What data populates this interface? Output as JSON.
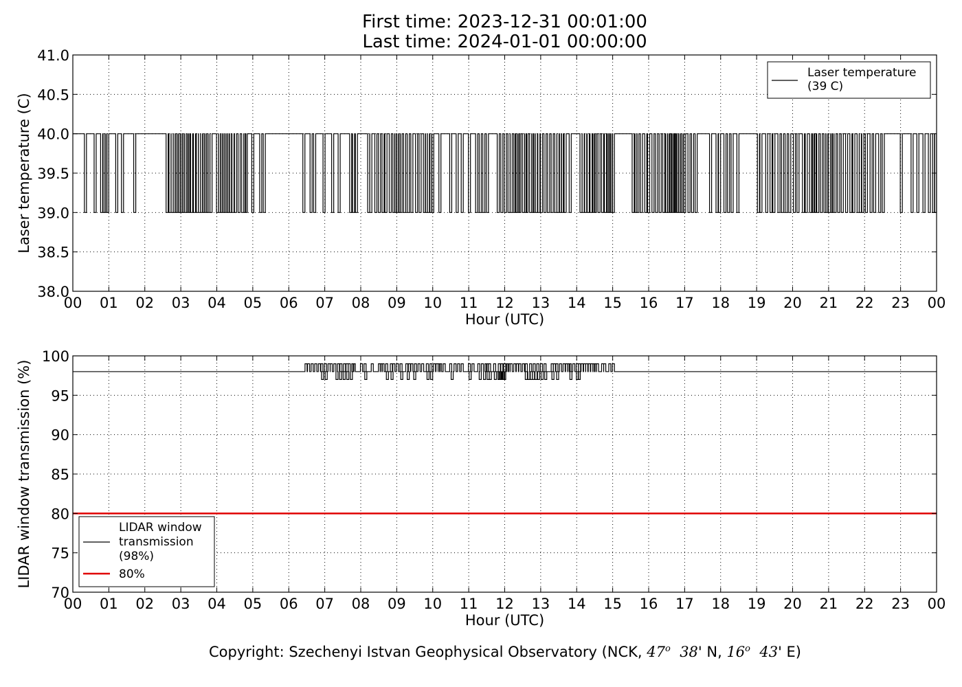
{
  "title": {
    "line1": "First time: 2023-12-31 00:01:00",
    "line2": "Last time: 2024-01-01 00:00:00"
  },
  "footer": {
    "prefix": "Copyright: Szechenyi Istvan Geophysical Observatory (NCK, ",
    "lat_deg": "47",
    "lat_min": "38",
    "lat_suffix": "' N, ",
    "lon_deg": "16",
    "lon_min": "43",
    "lon_suffix": "' E)",
    "degree_mark": "o"
  },
  "colors": {
    "series_line": "#000000",
    "threshold_line": "#e00000",
    "grid": "#000000"
  },
  "chart_data": [
    {
      "type": "line",
      "title": "",
      "xlabel": "Hour (UTC)",
      "ylabel": "Laser temperature (C)",
      "xlim": [
        0,
        24
      ],
      "ylim": [
        38.0,
        41.0
      ],
      "xticks": [
        "00",
        "01",
        "02",
        "03",
        "04",
        "05",
        "06",
        "07",
        "08",
        "09",
        "10",
        "11",
        "12",
        "13",
        "14",
        "15",
        "16",
        "17",
        "18",
        "19",
        "20",
        "21",
        "22",
        "23",
        "00"
      ],
      "yticks": [
        "38.0",
        "38.5",
        "39.0",
        "39.5",
        "40.0",
        "40.5",
        "41.0"
      ],
      "grid": true,
      "legend_position": "top-right",
      "series": [
        {
          "name": "Laser temperature\n(39 C)",
          "baseline": 40.0,
          "drop_value": 39.0,
          "drops_hours": [
            0.35,
            0.62,
            0.8,
            0.87,
            0.92,
            0.97,
            1.22,
            1.38,
            1.72,
            2.62,
            2.7,
            2.76,
            2.82,
            2.87,
            2.92,
            2.97,
            3.02,
            3.07,
            3.12,
            3.18,
            3.22,
            3.3,
            3.38,
            3.46,
            3.52,
            3.58,
            3.63,
            3.68,
            3.73,
            3.78,
            3.84,
            4.02,
            4.08,
            4.13,
            4.18,
            4.23,
            4.28,
            4.33,
            4.38,
            4.45,
            4.52,
            4.62,
            4.72,
            4.78,
            4.82,
            5.0,
            5.22,
            5.32,
            6.42,
            6.62,
            6.72,
            6.98,
            7.22,
            7.4,
            7.72,
            7.8,
            7.88,
            8.22,
            8.28,
            8.42,
            8.52,
            8.62,
            8.7,
            8.82,
            8.92,
            8.97,
            9.02,
            9.07,
            9.12,
            9.22,
            9.32,
            9.42,
            9.55,
            9.65,
            9.77,
            9.82,
            9.88,
            9.95,
            10.0,
            10.2,
            10.5,
            10.68,
            10.82,
            11.02,
            11.22,
            11.32,
            11.42,
            11.52,
            11.82,
            11.92,
            12.02,
            12.12,
            12.18,
            12.28,
            12.32,
            12.38,
            12.42,
            12.52,
            12.58,
            12.62,
            12.72,
            12.78,
            12.82,
            12.88,
            12.95,
            13.02,
            13.12,
            13.22,
            13.32,
            13.42,
            13.48,
            13.55,
            13.6,
            13.68,
            13.82,
            14.12,
            14.18,
            14.25,
            14.32,
            14.4,
            14.48,
            14.52,
            14.62,
            14.72,
            14.8,
            14.88,
            14.92,
            14.97,
            15.02,
            15.57,
            15.65,
            15.7,
            15.8,
            15.92,
            16.0,
            16.12,
            16.22,
            16.32,
            16.42,
            16.5,
            16.55,
            16.6,
            16.62,
            16.68,
            16.72,
            16.75,
            16.8,
            16.85,
            16.9,
            16.95,
            17.0,
            17.12,
            17.22,
            17.32,
            17.72,
            17.9,
            17.97,
            18.12,
            18.22,
            18.32,
            18.48,
            19.05,
            19.12,
            19.28,
            19.4,
            19.48,
            19.62,
            19.72,
            19.82,
            19.92,
            20.05,
            20.15,
            20.3,
            20.38,
            20.5,
            20.58,
            20.62,
            20.7,
            20.8,
            20.9,
            20.95,
            21.02,
            21.08,
            21.12,
            21.18,
            21.28,
            21.38,
            21.5,
            21.62,
            21.7,
            21.82,
            21.88,
            21.95,
            22.05,
            22.18,
            22.28,
            22.42,
            22.52,
            23.02,
            23.32,
            23.48,
            23.65,
            23.8,
            23.92,
            23.97
          ]
        }
      ]
    },
    {
      "type": "line",
      "title": "",
      "xlabel": "Hour (UTC)",
      "ylabel": "LIDAR window transmission (%)",
      "xlim": [
        0,
        24
      ],
      "ylim": [
        70,
        100
      ],
      "xticks": [
        "00",
        "01",
        "02",
        "03",
        "04",
        "05",
        "06",
        "07",
        "08",
        "09",
        "10",
        "11",
        "12",
        "13",
        "14",
        "15",
        "16",
        "17",
        "18",
        "19",
        "20",
        "21",
        "22",
        "23",
        "00"
      ],
      "yticks": [
        "70",
        "75",
        "80",
        "85",
        "90",
        "95",
        "100"
      ],
      "grid": true,
      "legend_position": "bottom-left",
      "series": [
        {
          "name": "LIDAR window\ntransmission\n(98%)",
          "baseline": 98.0,
          "up_value": 99.0,
          "down_value": 97.0,
          "up_hours": [
            6.48,
            6.55,
            6.65,
            6.75,
            6.85,
            6.92,
            7.02,
            7.12,
            7.18,
            7.28,
            7.38,
            7.45,
            7.55,
            7.62,
            7.68,
            7.78,
            7.82,
            8.02,
            8.12,
            8.32,
            8.52,
            8.57,
            8.62,
            8.72,
            8.85,
            8.92,
            9.02,
            9.12,
            9.28,
            9.35,
            9.42,
            9.52,
            9.62,
            9.72,
            9.85,
            9.95,
            10.05,
            10.12,
            10.18,
            10.22,
            10.32,
            10.5,
            10.62,
            10.72,
            10.82,
            11.02,
            11.12,
            11.28,
            11.38,
            11.48,
            11.52,
            11.58,
            11.72,
            11.85,
            11.92,
            12.0,
            12.08,
            12.12,
            12.18,
            12.28,
            12.35,
            12.42,
            12.52,
            12.6,
            12.72,
            12.82,
            12.92,
            13.02,
            13.12,
            13.32,
            13.38,
            13.45,
            13.55,
            13.65,
            13.72,
            13.78,
            13.82,
            13.92,
            14.02,
            14.08,
            14.15,
            14.22,
            14.28,
            14.35,
            14.42,
            14.48,
            14.52,
            14.58,
            14.72,
            14.78,
            14.92,
            15.02
          ],
          "down_hours": [
            6.92,
            7.02,
            7.32,
            7.42,
            7.52,
            7.62,
            7.72,
            8.12,
            8.72,
            8.85,
            9.12,
            9.3,
            9.48,
            9.85,
            9.95,
            10.52,
            11.02,
            11.3,
            11.42,
            11.52,
            11.58,
            11.72,
            11.82,
            11.85,
            11.88,
            11.92,
            11.95,
            11.98,
            12.58,
            12.65,
            12.72,
            12.78,
            12.85,
            12.92,
            13.02,
            13.12,
            13.32,
            13.45,
            13.82,
            14.0,
            14.05
          ]
        },
        {
          "name": "80%",
          "constant": 80
        }
      ]
    }
  ]
}
